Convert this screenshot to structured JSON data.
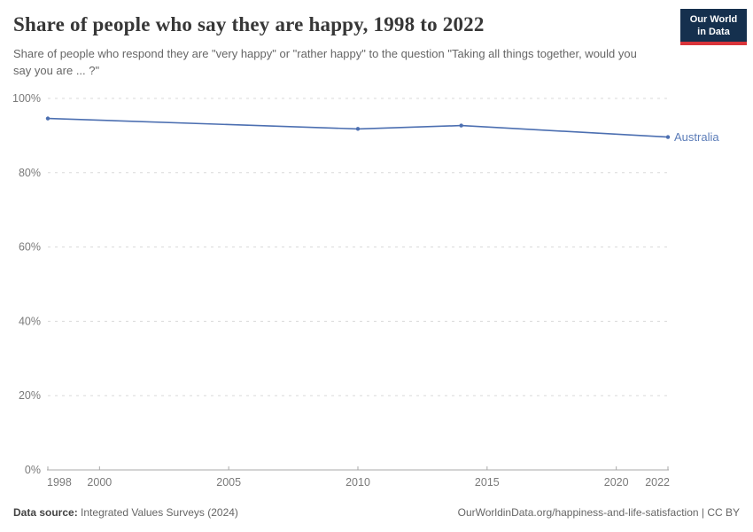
{
  "header": {
    "title": "Share of people who say they are happy, 1998 to 2022",
    "subtitle": "Share of people who respond they are \"very happy\" or \"rather happy\" to the question \"Taking all things together, would you say you are ... ?\"",
    "logo": {
      "line1": "Our World",
      "line2": "in Data",
      "bg_color": "#15304e",
      "accent_color": "#d9343a"
    }
  },
  "chart_data": {
    "type": "line",
    "title": "Share of people who say they are happy, 1998 to 2022",
    "xlabel": "",
    "ylabel": "",
    "xlim": [
      1998,
      2022
    ],
    "ylim": [
      0,
      100
    ],
    "x_ticks": [
      1998,
      2000,
      2005,
      2010,
      2015,
      2020,
      2022
    ],
    "y_ticks": [
      0,
      20,
      40,
      60,
      80,
      100
    ],
    "y_tick_suffix": "%",
    "grid": "horizontal-dashed",
    "legend_position": "end-of-line-label",
    "series": [
      {
        "name": "Australia",
        "color": "#4c6fb1",
        "label_color": "#5b7cb8",
        "x": [
          1998,
          2010,
          2014,
          2022
        ],
        "values": [
          94.6,
          91.8,
          92.7,
          89.6
        ]
      }
    ]
  },
  "footer": {
    "source_label": "Data source:",
    "source_value": "Integrated Values Surveys (2024)",
    "attribution": "OurWorldinData.org/happiness-and-life-satisfaction | CC BY"
  },
  "colors": {
    "gridline": "#dadada",
    "axis_line": "#a9a9a9",
    "tick_label": "#7a7a7a",
    "title_text": "#373737",
    "subtitle_text": "#666666"
  }
}
